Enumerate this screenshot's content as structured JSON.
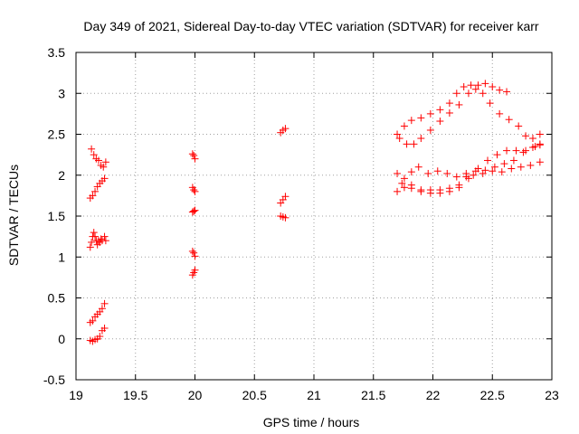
{
  "chart_data": {
    "type": "scatter",
    "title": "Day 349 of 2021, Sidereal Day-to-day VTEC variation (SDTVAR) for receiver karr",
    "xlabel": "GPS time / hours",
    "ylabel": "SDTVAR / TECUs",
    "xlim": [
      19,
      23
    ],
    "ylim": [
      -0.5,
      3.5
    ],
    "xticks": [
      19,
      19.5,
      20,
      20.5,
      21,
      21.5,
      22,
      22.5,
      23
    ],
    "xtick_labels": [
      "19",
      "19.5",
      "20",
      "20.5",
      "21",
      "21.5",
      "22",
      "22.5",
      "23"
    ],
    "yticks": [
      -0.5,
      0,
      0.5,
      1,
      1.5,
      2,
      2.5,
      3,
      3.5
    ],
    "ytick_labels": [
      "-0.5",
      "0",
      "0.5",
      "1",
      "1.5",
      "2",
      "2.5",
      "3",
      "3.5"
    ],
    "grid": true,
    "marker": "+",
    "marker_color": "#ff0000",
    "series": [
      {
        "name": "SDTVAR",
        "points": [
          [
            19.13,
            2.32
          ],
          [
            19.15,
            2.25
          ],
          [
            19.17,
            2.2
          ],
          [
            19.19,
            2.18
          ],
          [
            19.21,
            2.12
          ],
          [
            19.23,
            2.1
          ],
          [
            19.25,
            2.16
          ],
          [
            19.12,
            1.72
          ],
          [
            19.14,
            1.75
          ],
          [
            19.16,
            1.8
          ],
          [
            19.18,
            1.86
          ],
          [
            19.2,
            1.9
          ],
          [
            19.22,
            1.93
          ],
          [
            19.24,
            1.96
          ],
          [
            19.12,
            1.12
          ],
          [
            19.13,
            1.18
          ],
          [
            19.14,
            1.25
          ],
          [
            19.15,
            1.3
          ],
          [
            19.16,
            1.25
          ],
          [
            19.17,
            1.2
          ],
          [
            19.18,
            1.15
          ],
          [
            19.19,
            1.2
          ],
          [
            19.2,
            1.18
          ],
          [
            19.21,
            1.22
          ],
          [
            19.22,
            1.2
          ],
          [
            19.24,
            1.25
          ],
          [
            19.25,
            1.2
          ],
          [
            19.12,
            0.2
          ],
          [
            19.14,
            0.22
          ],
          [
            19.16,
            0.27
          ],
          [
            19.18,
            0.3
          ],
          [
            19.2,
            0.33
          ],
          [
            19.22,
            0.37
          ],
          [
            19.24,
            0.43
          ],
          [
            19.12,
            -0.02
          ],
          [
            19.14,
            -0.03
          ],
          [
            19.16,
            -0.01
          ],
          [
            19.18,
            0.0
          ],
          [
            19.2,
            0.03
          ],
          [
            19.22,
            0.1
          ],
          [
            19.24,
            0.13
          ],
          [
            19.98,
            2.26
          ],
          [
            19.99,
            2.24
          ],
          [
            20.0,
            2.2
          ],
          [
            19.98,
            1.85
          ],
          [
            19.99,
            1.82
          ],
          [
            20.0,
            1.8
          ],
          [
            19.98,
            1.55
          ],
          [
            19.99,
            1.56
          ],
          [
            20.0,
            1.57
          ],
          [
            19.98,
            1.07
          ],
          [
            19.99,
            1.05
          ],
          [
            20.0,
            1.01
          ],
          [
            19.98,
            0.78
          ],
          [
            19.99,
            0.81
          ],
          [
            20.0,
            0.84
          ],
          [
            20.72,
            2.52
          ],
          [
            20.74,
            2.55
          ],
          [
            20.76,
            2.57
          ],
          [
            20.72,
            1.66
          ],
          [
            20.74,
            1.7
          ],
          [
            20.76,
            1.74
          ],
          [
            20.72,
            1.5
          ],
          [
            20.74,
            1.49
          ],
          [
            20.76,
            1.48
          ],
          [
            21.7,
            2.5
          ],
          [
            21.76,
            2.6
          ],
          [
            21.82,
            2.67
          ],
          [
            21.9,
            2.7
          ],
          [
            21.98,
            2.75
          ],
          [
            22.06,
            2.8
          ],
          [
            22.14,
            2.88
          ],
          [
            22.2,
            3.0
          ],
          [
            22.26,
            3.08
          ],
          [
            22.32,
            3.1
          ],
          [
            22.38,
            3.1
          ],
          [
            22.44,
            3.12
          ],
          [
            22.5,
            3.08
          ],
          [
            22.56,
            3.04
          ],
          [
            22.62,
            3.02
          ],
          [
            21.72,
            2.45
          ],
          [
            21.78,
            2.38
          ],
          [
            21.84,
            2.38
          ],
          [
            21.9,
            2.45
          ],
          [
            21.98,
            2.55
          ],
          [
            22.06,
            2.66
          ],
          [
            22.14,
            2.76
          ],
          [
            22.22,
            2.86
          ],
          [
            22.3,
            3.0
          ],
          [
            22.36,
            3.05
          ],
          [
            22.42,
            3.0
          ],
          [
            22.48,
            2.88
          ],
          [
            22.56,
            2.75
          ],
          [
            22.64,
            2.68
          ],
          [
            22.72,
            2.6
          ],
          [
            22.78,
            2.48
          ],
          [
            22.84,
            2.45
          ],
          [
            22.9,
            2.5
          ],
          [
            21.7,
            2.02
          ],
          [
            21.76,
            1.96
          ],
          [
            21.82,
            2.04
          ],
          [
            21.88,
            2.1
          ],
          [
            21.96,
            2.02
          ],
          [
            22.04,
            2.05
          ],
          [
            22.12,
            2.02
          ],
          [
            22.2,
            1.98
          ],
          [
            22.28,
            2.02
          ],
          [
            22.36,
            2.05
          ],
          [
            22.44,
            2.06
          ],
          [
            22.52,
            2.1
          ],
          [
            22.6,
            2.14
          ],
          [
            22.68,
            2.18
          ],
          [
            22.76,
            2.28
          ],
          [
            22.84,
            2.34
          ],
          [
            22.9,
            2.37
          ],
          [
            21.7,
            1.8
          ],
          [
            21.76,
            1.85
          ],
          [
            21.82,
            1.88
          ],
          [
            21.9,
            1.82
          ],
          [
            21.98,
            1.78
          ],
          [
            22.06,
            1.78
          ],
          [
            22.14,
            1.8
          ],
          [
            22.22,
            1.85
          ],
          [
            22.3,
            1.96
          ],
          [
            22.38,
            2.08
          ],
          [
            22.46,
            2.18
          ],
          [
            22.54,
            2.25
          ],
          [
            22.62,
            2.3
          ],
          [
            22.7,
            2.3
          ],
          [
            22.78,
            2.3
          ],
          [
            22.86,
            2.35
          ],
          [
            22.9,
            2.38
          ],
          [
            21.74,
            1.9
          ],
          [
            21.82,
            1.84
          ],
          [
            21.9,
            1.8
          ],
          [
            21.98,
            1.82
          ],
          [
            22.06,
            1.82
          ],
          [
            22.14,
            1.84
          ],
          [
            22.22,
            1.88
          ],
          [
            22.28,
            1.98
          ],
          [
            22.34,
            2.0
          ],
          [
            22.42,
            2.02
          ],
          [
            22.5,
            2.05
          ],
          [
            22.58,
            2.04
          ],
          [
            22.66,
            2.08
          ],
          [
            22.74,
            2.1
          ],
          [
            22.82,
            2.12
          ],
          [
            22.9,
            2.16
          ]
        ]
      }
    ]
  }
}
